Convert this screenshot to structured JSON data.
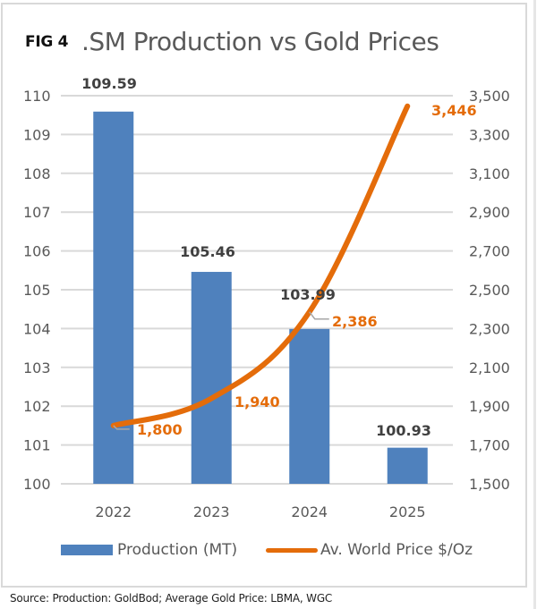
{
  "header": {
    "fig_label": "FIG 4",
    "title": ".SM Production vs Gold Prices"
  },
  "source": "Source: Production: GoldBod; Average Gold Price: LBMA, WGC",
  "colors": {
    "bar": "#4f81bd",
    "line": "#e46c0a",
    "grid": "#d9d9d9",
    "tick_text": "#595959",
    "bar_label": "#404040",
    "line_label": "#e46c0a"
  },
  "chart_data": {
    "type": "bar",
    "title": ".SM Production vs Gold Prices",
    "categories": [
      "2022",
      "2023",
      "2024",
      "2025"
    ],
    "series": [
      {
        "name": "Production (MT)",
        "type": "bar",
        "axis": "left",
        "values": [
          109.59,
          105.46,
          103.99,
          100.93
        ],
        "labels": [
          "109.59",
          "105.46",
          "103.99",
          "100.93"
        ]
      },
      {
        "name": "Av. World Price $/Oz",
        "type": "line",
        "axis": "right",
        "values": [
          1800,
          1940,
          2386,
          3446
        ],
        "labels": [
          "1,800",
          "1,940",
          "2,386",
          "3,446"
        ]
      }
    ],
    "y_left": {
      "ylim": [
        100,
        110
      ],
      "ticks": [
        100,
        101,
        102,
        103,
        104,
        105,
        106,
        107,
        108,
        109,
        110
      ],
      "tick_labels": [
        "100",
        "101",
        "102",
        "103",
        "104",
        "105",
        "106",
        "107",
        "108",
        "109",
        "110"
      ]
    },
    "y_right": {
      "ylim": [
        1500,
        3500
      ],
      "ticks": [
        1500,
        1700,
        1900,
        2100,
        2300,
        2500,
        2700,
        2900,
        3100,
        3300,
        3500
      ],
      "tick_labels": [
        "1,500",
        "1,700",
        "1,900",
        "2,100",
        "2,300",
        "2,500",
        "2,700",
        "2,900",
        "3,100",
        "3,300",
        "3,500"
      ]
    },
    "xlabel": "",
    "ylabel": "",
    "grid": true,
    "legend": {
      "position": "bottom",
      "entries": [
        "Production (MT)",
        "Av. World Price $/Oz"
      ]
    }
  }
}
